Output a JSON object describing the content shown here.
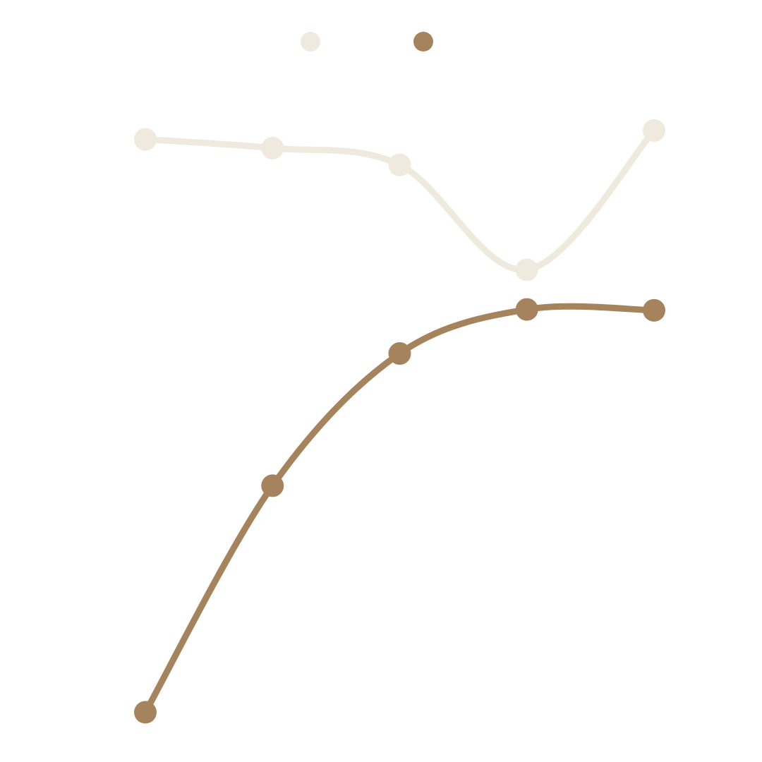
{
  "chart_data": {
    "type": "line",
    "x": [
      1,
      2,
      3,
      4,
      5
    ],
    "ylim": [
      0,
      7.5
    ],
    "grid": false,
    "legend_position": "top",
    "smooth": true,
    "series": [
      {
        "color": "#F0E9DD",
        "values": [
          6.72,
          6.62,
          6.43,
          5.24,
          6.82
        ]
      },
      {
        "color": "#A5845D",
        "values": [
          0.22,
          2.79,
          4.29,
          4.79,
          4.78
        ]
      }
    ]
  }
}
